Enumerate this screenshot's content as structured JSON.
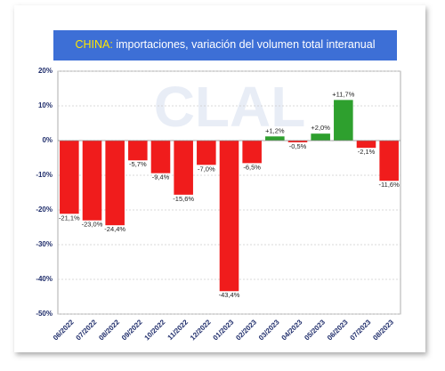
{
  "chart_data": {
    "type": "bar",
    "title": {
      "highlight": "CHINA:",
      "text": "importaciones, variación del volumen total interanual"
    },
    "watermark": "CLAL",
    "categories": [
      "06/2022",
      "07/2022",
      "08/2022",
      "09/2022",
      "10/2022",
      "11/2022",
      "12/2022",
      "01/2023",
      "02/2023",
      "03/2023",
      "04/2023",
      "05/2023",
      "06/2023",
      "07/2023",
      "08/2023"
    ],
    "values": [
      -21.1,
      -23.0,
      -24.4,
      -5.7,
      -9.4,
      -15.6,
      -7.0,
      -43.4,
      -6.5,
      1.2,
      -0.5,
      2.0,
      11.7,
      -2.1,
      -11.6
    ],
    "value_labels": [
      "-21,1%",
      "-23,0%",
      "-24,4%",
      "-5,7%",
      "-9,4%",
      "-15,6%",
      "-7,0%",
      "-43,4%",
      "-6,5%",
      "+1,2%",
      "-0,5%",
      "+2,0%",
      "+11,7%",
      "-2,1%",
      "-11,6%"
    ],
    "positive_color": "#2ea02e",
    "negative_color": "#f01c1c",
    "ylim": [
      -50,
      20
    ],
    "yticks": [
      {
        "value": 20,
        "label": "20%"
      },
      {
        "value": 10,
        "label": "10%"
      },
      {
        "value": 0,
        "label": "0%"
      },
      {
        "value": -10,
        "label": "-10%"
      },
      {
        "value": -20,
        "label": "-20%"
      },
      {
        "value": -30,
        "label": "-30%"
      },
      {
        "value": -40,
        "label": "-40%"
      },
      {
        "value": -50,
        "label": "-50%"
      }
    ],
    "grid": true
  }
}
